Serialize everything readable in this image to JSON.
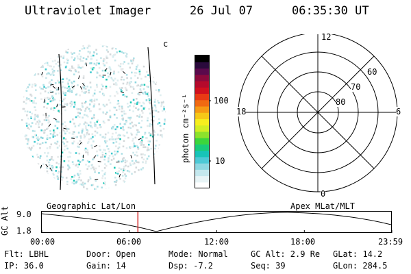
{
  "header": {
    "instrument": "Ultraviolet Imager",
    "date": "26 Jul 07",
    "time": "06:35:30 UT"
  },
  "colorbar": {
    "label": "photon cm⁻²s⁻¹",
    "ticks": [
      "100",
      "10"
    ],
    "colors": [
      "#ffffff",
      "#e8f4f6",
      "#c4e8ee",
      "#8fd8e2",
      "#4ec9d6",
      "#18c4b8",
      "#19cc7a",
      "#3cd63c",
      "#8ce22c",
      "#d2ee24",
      "#f6ee1e",
      "#f6c818",
      "#f69a14",
      "#f06a12",
      "#e83a14",
      "#d0101e",
      "#b40a2c",
      "#8c0a3c",
      "#5a0a4c",
      "#2a0a3c",
      "#000000"
    ]
  },
  "polar": {
    "mlt_labels": {
      "top": "12",
      "left": "18",
      "right": "6",
      "bottom": "0"
    },
    "lat_labels": [
      "60",
      "70",
      "80"
    ]
  },
  "timeline": {
    "ylabel": "GC Alt",
    "ymax": "9.0",
    "ymin": "1.8",
    "left_title": "Geographic Lat/Lon",
    "right_title": "Apex MLat/MLT",
    "times": [
      "00:00",
      "06:00",
      "12:00",
      "18:00",
      "23:59"
    ],
    "marker_time_hours": 6.59,
    "marker_color": "#cc0000"
  },
  "info": {
    "filter": "Flt: LBHL",
    "ip": "IP: 36.0",
    "door": "Door: Open",
    "gain": "Gain: 14",
    "mode": "Mode: Normal",
    "dsp": "Dsp:    -7.2",
    "gc_alt": "GC Alt: 2.9 Re",
    "seq": "Seq: 39",
    "glat": "GLat:  14.2",
    "glon": "GLon: 284.5"
  }
}
